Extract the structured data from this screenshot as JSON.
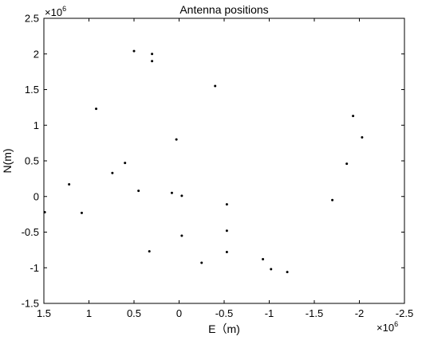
{
  "chart_data": {
    "type": "scatter",
    "title": "Antenna positions",
    "xlabel": "E（m)",
    "ylabel": "N(m)",
    "xlim": [
      1.5,
      -2.5
    ],
    "ylim": [
      -1.5,
      2.5
    ],
    "x_reversed": true,
    "x_exponent_base": "×10",
    "x_exponent_power": "6",
    "y_exponent_base": "×10",
    "y_exponent_power": "6",
    "xticks": [
      1.5,
      1,
      0.5,
      0,
      -0.5,
      -1,
      -1.5,
      -2,
      -2.5
    ],
    "xtick_labels": [
      "1.5",
      "1",
      "0.5",
      "0",
      "-0.5",
      "-1",
      "-1.5",
      "-2",
      "-2.5"
    ],
    "yticks": [
      -1.5,
      -1,
      -0.5,
      0,
      0.5,
      1,
      1.5,
      2,
      2.5
    ],
    "ytick_labels": [
      "-1.5",
      "-1",
      "-0.5",
      "0",
      "0.5",
      "1",
      "1.5",
      "2",
      "2.5"
    ],
    "grid": false,
    "points": [
      {
        "x": 1.49,
        "y": -0.22
      },
      {
        "x": 1.22,
        "y": 0.17
      },
      {
        "x": 1.08,
        "y": -0.23
      },
      {
        "x": 0.92,
        "y": 1.23
      },
      {
        "x": 0.74,
        "y": 0.33
      },
      {
        "x": 0.6,
        "y": 0.47
      },
      {
        "x": 0.5,
        "y": 2.04
      },
      {
        "x": 0.45,
        "y": 0.08
      },
      {
        "x": 0.33,
        "y": -0.77
      },
      {
        "x": 0.3,
        "y": 2.0
      },
      {
        "x": 0.3,
        "y": 1.9
      },
      {
        "x": 0.08,
        "y": 0.05
      },
      {
        "x": 0.03,
        "y": 0.8
      },
      {
        "x": -0.03,
        "y": 0.01
      },
      {
        "x": -0.03,
        "y": -0.55
      },
      {
        "x": -0.25,
        "y": -0.93
      },
      {
        "x": -0.4,
        "y": 1.55
      },
      {
        "x": -0.53,
        "y": -0.11
      },
      {
        "x": -0.53,
        "y": -0.48
      },
      {
        "x": -0.53,
        "y": -0.78
      },
      {
        "x": -0.93,
        "y": -0.88
      },
      {
        "x": -1.02,
        "y": -1.02
      },
      {
        "x": -1.2,
        "y": -1.06
      },
      {
        "x": -1.7,
        "y": -0.05
      },
      {
        "x": -1.86,
        "y": 0.46
      },
      {
        "x": -1.93,
        "y": 1.13
      },
      {
        "x": -2.03,
        "y": 0.83
      }
    ]
  }
}
